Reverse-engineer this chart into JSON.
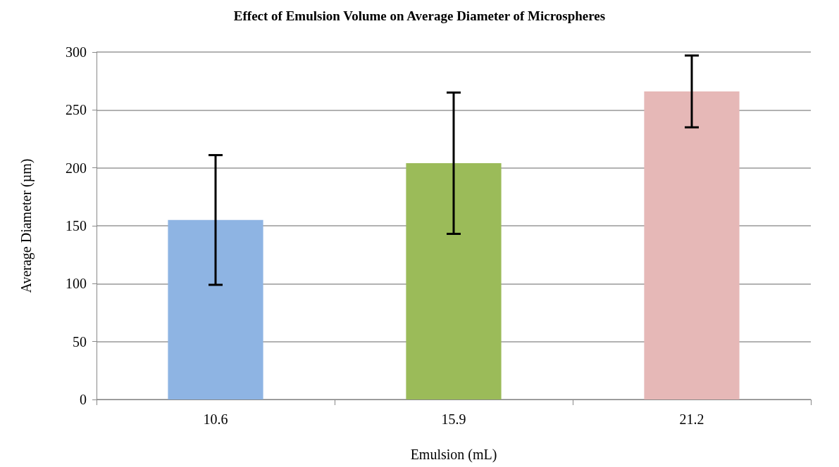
{
  "chart_data": {
    "type": "bar",
    "title": "Effect of Emulsion Volume on Average Diameter of Microspheres",
    "xlabel": "Emulsion (mL)",
    "ylabel": "Average Diameter (µm)",
    "categories": [
      "10.6",
      "15.9",
      "21.2"
    ],
    "values": [
      155,
      204,
      266
    ],
    "colors": [
      "#8eb4e3",
      "#9bbb59",
      "#e6b8b7"
    ],
    "errors": [
      56,
      61,
      31
    ],
    "ylim": [
      0,
      300
    ],
    "yticks": [
      0,
      50,
      100,
      150,
      200,
      250,
      300
    ],
    "grid": "y"
  }
}
